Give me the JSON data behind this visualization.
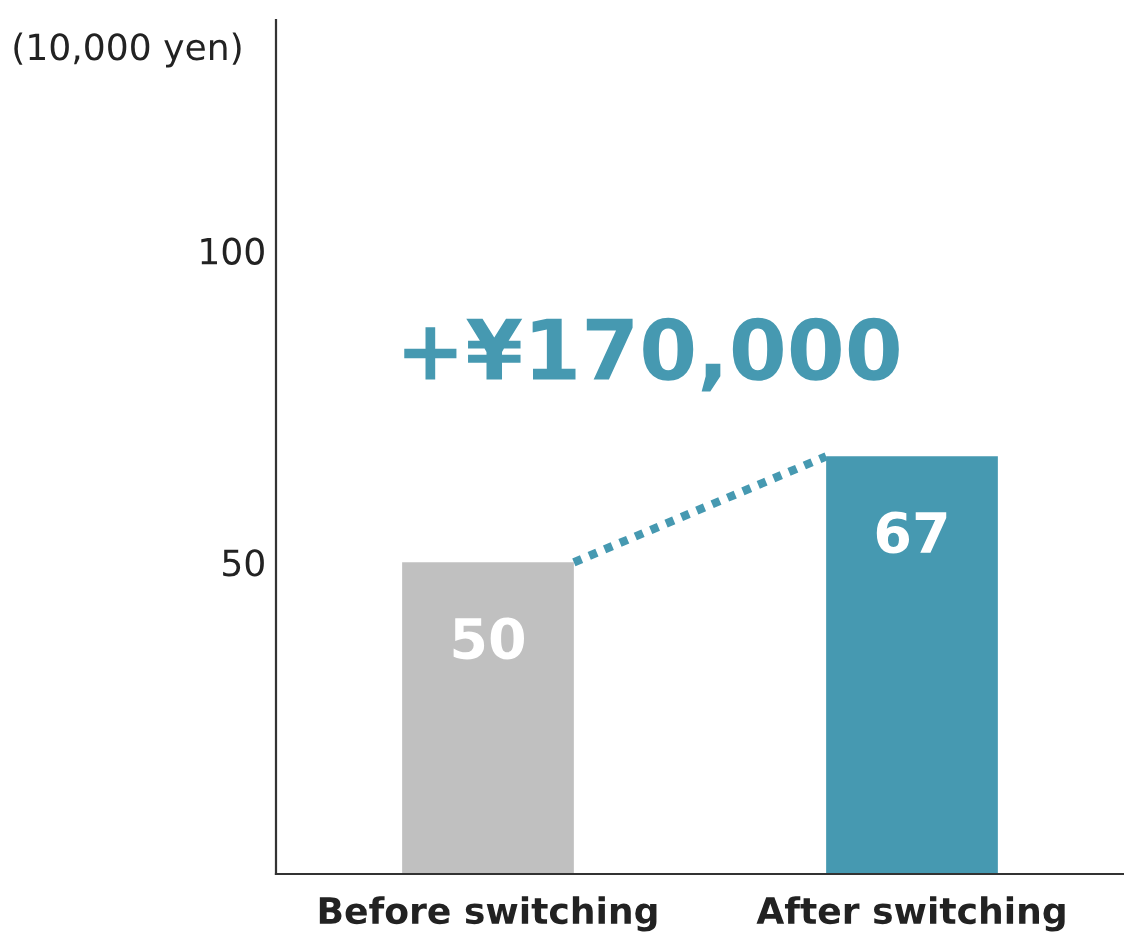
{
  "chart_data": {
    "type": "bar",
    "ylabel": "(10,000 yen)",
    "categories": [
      "Before switching",
      "After switching"
    ],
    "values": [
      50,
      67
    ],
    "colors": [
      "#c0c0c0",
      "#4699b1"
    ],
    "ylim": [
      0,
      137
    ],
    "yticks": [
      50,
      100
    ],
    "data_labels": true,
    "grid": false,
    "legend": false,
    "annotations": [
      {
        "text": "+¥170,000",
        "x": "After switching",
        "y": 67
      }
    ]
  }
}
